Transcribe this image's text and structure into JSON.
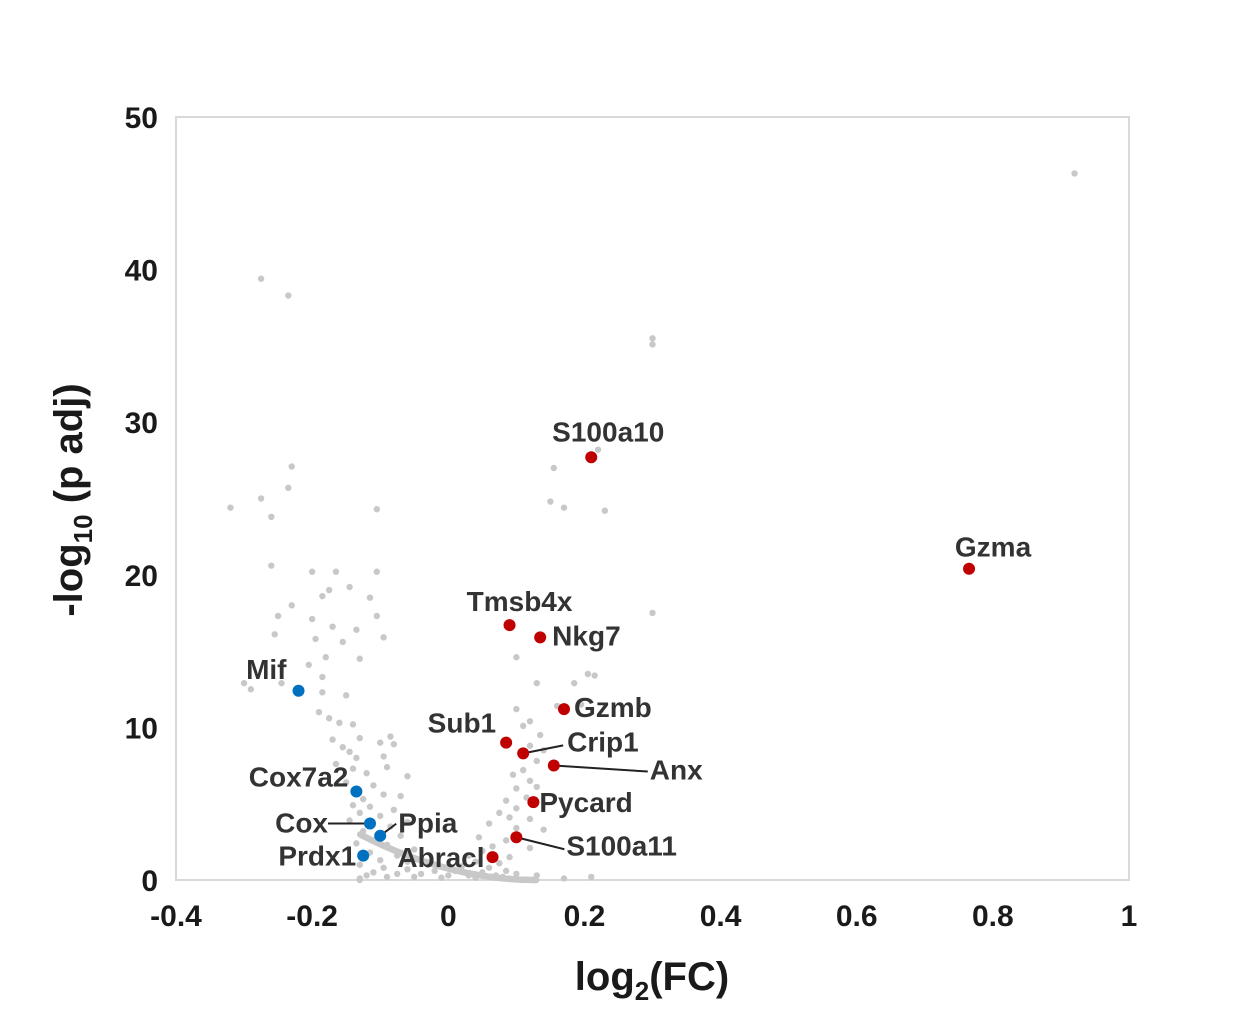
{
  "chart_data": {
    "type": "scatter",
    "title": "",
    "xlabel": {
      "pre": "log",
      "sub": "2",
      "post": "(FC)"
    },
    "ylabel": {
      "pre": "-log",
      "sub": "10",
      "post": " (p adj)"
    },
    "xlim": [
      -0.4,
      1.0
    ],
    "ylim": [
      0,
      50
    ],
    "x_ticks": [
      "-0.4",
      "-0.2",
      "0",
      "0.2",
      "0.4",
      "0.6",
      "0.8",
      "1"
    ],
    "y_ticks": [
      "0",
      "10",
      "20",
      "30",
      "40",
      "50"
    ],
    "grid": false,
    "colors": {
      "background": "#c8c8c8",
      "up": "#c00000",
      "down": "#0070c0"
    },
    "highlighted": [
      {
        "gene": "S100a10",
        "x": 0.21,
        "y": 27.7,
        "group": "up"
      },
      {
        "gene": "Gzma",
        "x": 0.765,
        "y": 20.4,
        "group": "up"
      },
      {
        "gene": "Tmsb4x",
        "x": 0.09,
        "y": 16.7,
        "group": "up"
      },
      {
        "gene": "Nkg7",
        "x": 0.135,
        "y": 15.9,
        "group": "up"
      },
      {
        "gene": "Gzmb",
        "x": 0.17,
        "y": 11.2,
        "group": "up"
      },
      {
        "gene": "Sub1",
        "x": 0.085,
        "y": 9.0,
        "group": "up"
      },
      {
        "gene": "Crip1",
        "x": 0.11,
        "y": 8.3,
        "group": "up"
      },
      {
        "gene": "Anx",
        "x": 0.155,
        "y": 7.5,
        "group": "up"
      },
      {
        "gene": "Pycard",
        "x": 0.125,
        "y": 5.1,
        "group": "up"
      },
      {
        "gene": "S100a11",
        "x": 0.1,
        "y": 2.8,
        "group": "up"
      },
      {
        "gene": "Abracl",
        "x": 0.065,
        "y": 1.5,
        "group": "up"
      },
      {
        "gene": "Mif",
        "x": -0.22,
        "y": 12.4,
        "group": "down"
      },
      {
        "gene": "Cox7a2",
        "x": -0.135,
        "y": 5.8,
        "group": "down"
      },
      {
        "gene": "Cox",
        "x": -0.115,
        "y": 3.7,
        "group": "down"
      },
      {
        "gene": "Ppia",
        "x": -0.1,
        "y": 2.9,
        "group": "down"
      },
      {
        "gene": "Prdx1",
        "x": -0.125,
        "y": 1.6,
        "group": "down"
      }
    ],
    "background_points": [
      [
        0.92,
        46.3
      ],
      [
        -0.275,
        39.4
      ],
      [
        -0.235,
        38.3
      ],
      [
        0.3,
        35.5
      ],
      [
        0.3,
        35.1
      ],
      [
        -0.23,
        27.1
      ],
      [
        0.155,
        27.0
      ],
      [
        0.22,
        28.2
      ],
      [
        -0.235,
        25.7
      ],
      [
        -0.275,
        25.0
      ],
      [
        0.15,
        24.8
      ],
      [
        0.17,
        24.4
      ],
      [
        0.23,
        24.2
      ],
      [
        -0.32,
        24.4
      ],
      [
        -0.26,
        23.8
      ],
      [
        -0.105,
        24.3
      ],
      [
        -0.26,
        20.6
      ],
      [
        -0.2,
        20.2
      ],
      [
        -0.165,
        20.2
      ],
      [
        -0.105,
        20.2
      ],
      [
        -0.175,
        19.0
      ],
      [
        -0.145,
        19.2
      ],
      [
        -0.185,
        18.6
      ],
      [
        -0.115,
        18.5
      ],
      [
        -0.23,
        18.0
      ],
      [
        -0.105,
        17.3
      ],
      [
        -0.25,
        17.3
      ],
      [
        -0.2,
        17.1
      ],
      [
        0.3,
        17.5
      ],
      [
        -0.17,
        16.6
      ],
      [
        -0.135,
        16.4
      ],
      [
        -0.255,
        16.1
      ],
      [
        -0.195,
        15.8
      ],
      [
        -0.155,
        15.6
      ],
      [
        -0.095,
        15.9
      ],
      [
        -0.18,
        14.6
      ],
      [
        0.1,
        14.6
      ],
      [
        -0.13,
        14.5
      ],
      [
        -0.205,
        14.1
      ],
      [
        0.205,
        13.5
      ],
      [
        -0.185,
        13.3
      ],
      [
        -0.3,
        12.9
      ],
      [
        0.185,
        12.9
      ],
      [
        0.215,
        13.4
      ],
      [
        0.13,
        12.9
      ],
      [
        -0.185,
        12.3
      ],
      [
        -0.245,
        12.9
      ],
      [
        -0.29,
        12.5
      ],
      [
        -0.15,
        12.1
      ],
      [
        0.16,
        11.4
      ],
      [
        0.195,
        11.5
      ],
      [
        -0.19,
        11.0
      ],
      [
        0.1,
        11.2
      ],
      [
        -0.175,
        10.6
      ],
      [
        0.12,
        10.4
      ],
      [
        -0.16,
        10.3
      ],
      [
        -0.14,
        10.2
      ],
      [
        0.11,
        10.1
      ],
      [
        -0.085,
        9.4
      ],
      [
        -0.17,
        9.2
      ],
      [
        0.135,
        9.5
      ],
      [
        -0.13,
        9.3
      ],
      [
        -0.1,
        9.0
      ],
      [
        -0.08,
        8.9
      ],
      [
        -0.155,
        8.7
      ],
      [
        -0.145,
        8.4
      ],
      [
        0.12,
        8.8
      ],
      [
        0.14,
        8.5
      ],
      [
        -0.135,
        8.0
      ],
      [
        -0.095,
        8.1
      ],
      [
        0.13,
        7.8
      ],
      [
        -0.165,
        7.6
      ],
      [
        0.11,
        7.2
      ],
      [
        -0.14,
        7.3
      ],
      [
        -0.12,
        7.0
      ],
      [
        -0.09,
        7.4
      ],
      [
        -0.06,
        6.8
      ],
      [
        0.095,
        6.9
      ],
      [
        0.12,
        6.5
      ],
      [
        -0.15,
        6.4
      ],
      [
        -0.11,
        6.2
      ],
      [
        0.1,
        6.0
      ],
      [
        0.13,
        6.1
      ],
      [
        -0.125,
        5.3
      ],
      [
        -0.095,
        5.6
      ],
      [
        -0.07,
        5.5
      ],
      [
        0.115,
        5.4
      ],
      [
        0.085,
        5.2
      ],
      [
        -0.14,
        4.9
      ],
      [
        -0.115,
        4.8
      ],
      [
        -0.08,
        4.6
      ],
      [
        0.1,
        4.7
      ],
      [
        0.075,
        4.4
      ],
      [
        -0.13,
        4.4
      ],
      [
        -0.1,
        4.2
      ],
      [
        0.09,
        4.1
      ],
      [
        0.12,
        4.0
      ],
      [
        -0.145,
        3.9
      ],
      [
        -0.06,
        3.8
      ],
      [
        -0.085,
        3.5
      ],
      [
        0.06,
        3.7
      ],
      [
        0.1,
        3.4
      ],
      [
        -0.125,
        3.2
      ],
      [
        0.14,
        3.3
      ],
      [
        -0.105,
        2.7
      ],
      [
        -0.07,
        2.9
      ],
      [
        0.045,
        2.8
      ],
      [
        0.085,
        2.6
      ],
      [
        -0.135,
        2.4
      ],
      [
        -0.09,
        2.3
      ],
      [
        0.065,
        2.2
      ],
      [
        -0.05,
        2.0
      ],
      [
        0.05,
        1.9
      ],
      [
        0.12,
        2.1
      ],
      [
        -0.115,
        1.8
      ],
      [
        -0.075,
        1.6
      ],
      [
        0.03,
        1.6
      ],
      [
        0.09,
        1.5
      ],
      [
        -0.1,
        1.3
      ],
      [
        -0.06,
        1.2
      ],
      [
        0.04,
        1.2
      ],
      [
        0.075,
        1.1
      ],
      [
        -0.13,
        1.0
      ],
      [
        -0.03,
        1.0
      ],
      [
        0.02,
        0.9
      ],
      [
        0.06,
        0.8
      ],
      [
        -0.095,
        0.8
      ],
      [
        -0.06,
        0.7
      ],
      [
        -0.02,
        0.6
      ],
      [
        0.01,
        0.6
      ],
      [
        0.05,
        0.5
      ],
      [
        0.085,
        0.6
      ],
      [
        -0.11,
        0.5
      ],
      [
        -0.075,
        0.4
      ],
      [
        -0.04,
        0.4
      ],
      [
        0.0,
        0.3
      ],
      [
        0.03,
        0.3
      ],
      [
        0.07,
        0.3
      ],
      [
        0.1,
        0.4
      ],
      [
        -0.12,
        0.3
      ],
      [
        -0.09,
        0.2
      ],
      [
        -0.05,
        0.2
      ],
      [
        -0.01,
        0.15
      ],
      [
        0.04,
        0.15
      ],
      [
        0.08,
        0.2
      ],
      [
        0.13,
        0.3
      ],
      [
        0.21,
        0.2
      ],
      [
        -0.13,
        0.1
      ],
      [
        0.17,
        0.1
      ]
    ]
  }
}
